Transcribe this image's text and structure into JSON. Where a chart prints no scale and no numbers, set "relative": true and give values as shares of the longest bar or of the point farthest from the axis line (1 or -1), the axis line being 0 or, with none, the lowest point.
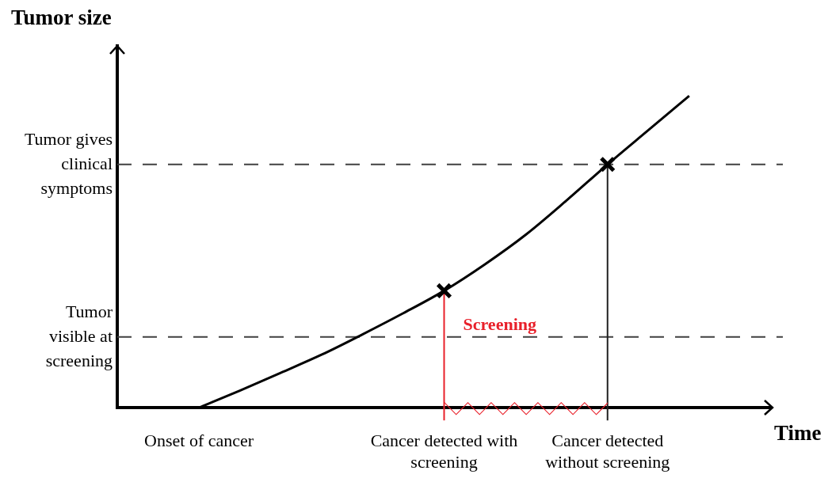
{
  "chart_data": {
    "type": "line",
    "relative": true,
    "xlabel": "Time",
    "ylabel": "Tumor size",
    "categories": [
      null,
      null,
      "Onset of cancer",
      null,
      null,
      null,
      null,
      null,
      "Cancer detected with screening",
      null,
      null,
      null,
      "Cancer detected without screening",
      null,
      null,
      null,
      null
    ],
    "series": [
      {
        "type": "line",
        "color": "#000000",
        "marker": "none",
        "values": [
          null,
          null,
          0,
          0.055,
          0.112,
          0.17,
          0.235,
          0.303,
          0.375,
          0.46,
          0.555,
          0.665,
          0.78,
          0.89,
          1.0,
          null,
          null
        ]
      },
      {
        "type": "scatter",
        "color": "#000000",
        "marker": "cross",
        "x": [
          "Cancer detected with screening",
          "Cancer detected without screening"
        ],
        "values": [
          0.375,
          0.78
        ]
      }
    ],
    "ref_lines": [
      {
        "axis": "y",
        "value": 0.78,
        "label": "Tumor gives clinical symptoms",
        "color": "#404040",
        "line_style": "dashed"
      },
      {
        "axis": "y",
        "value": 0.227,
        "label": "Tumor visible at screening",
        "color": "#404040",
        "line_style": "dashed"
      },
      {
        "axis": "x",
        "value": "Cancer detected with screening",
        "label": "Screening",
        "color": "#e8202a",
        "line_style": "solid"
      },
      {
        "axis": "x",
        "value": "Cancer detected without screening",
        "color": "#202020",
        "line_style": "solid"
      }
    ],
    "grid": false,
    "legend": false
  }
}
